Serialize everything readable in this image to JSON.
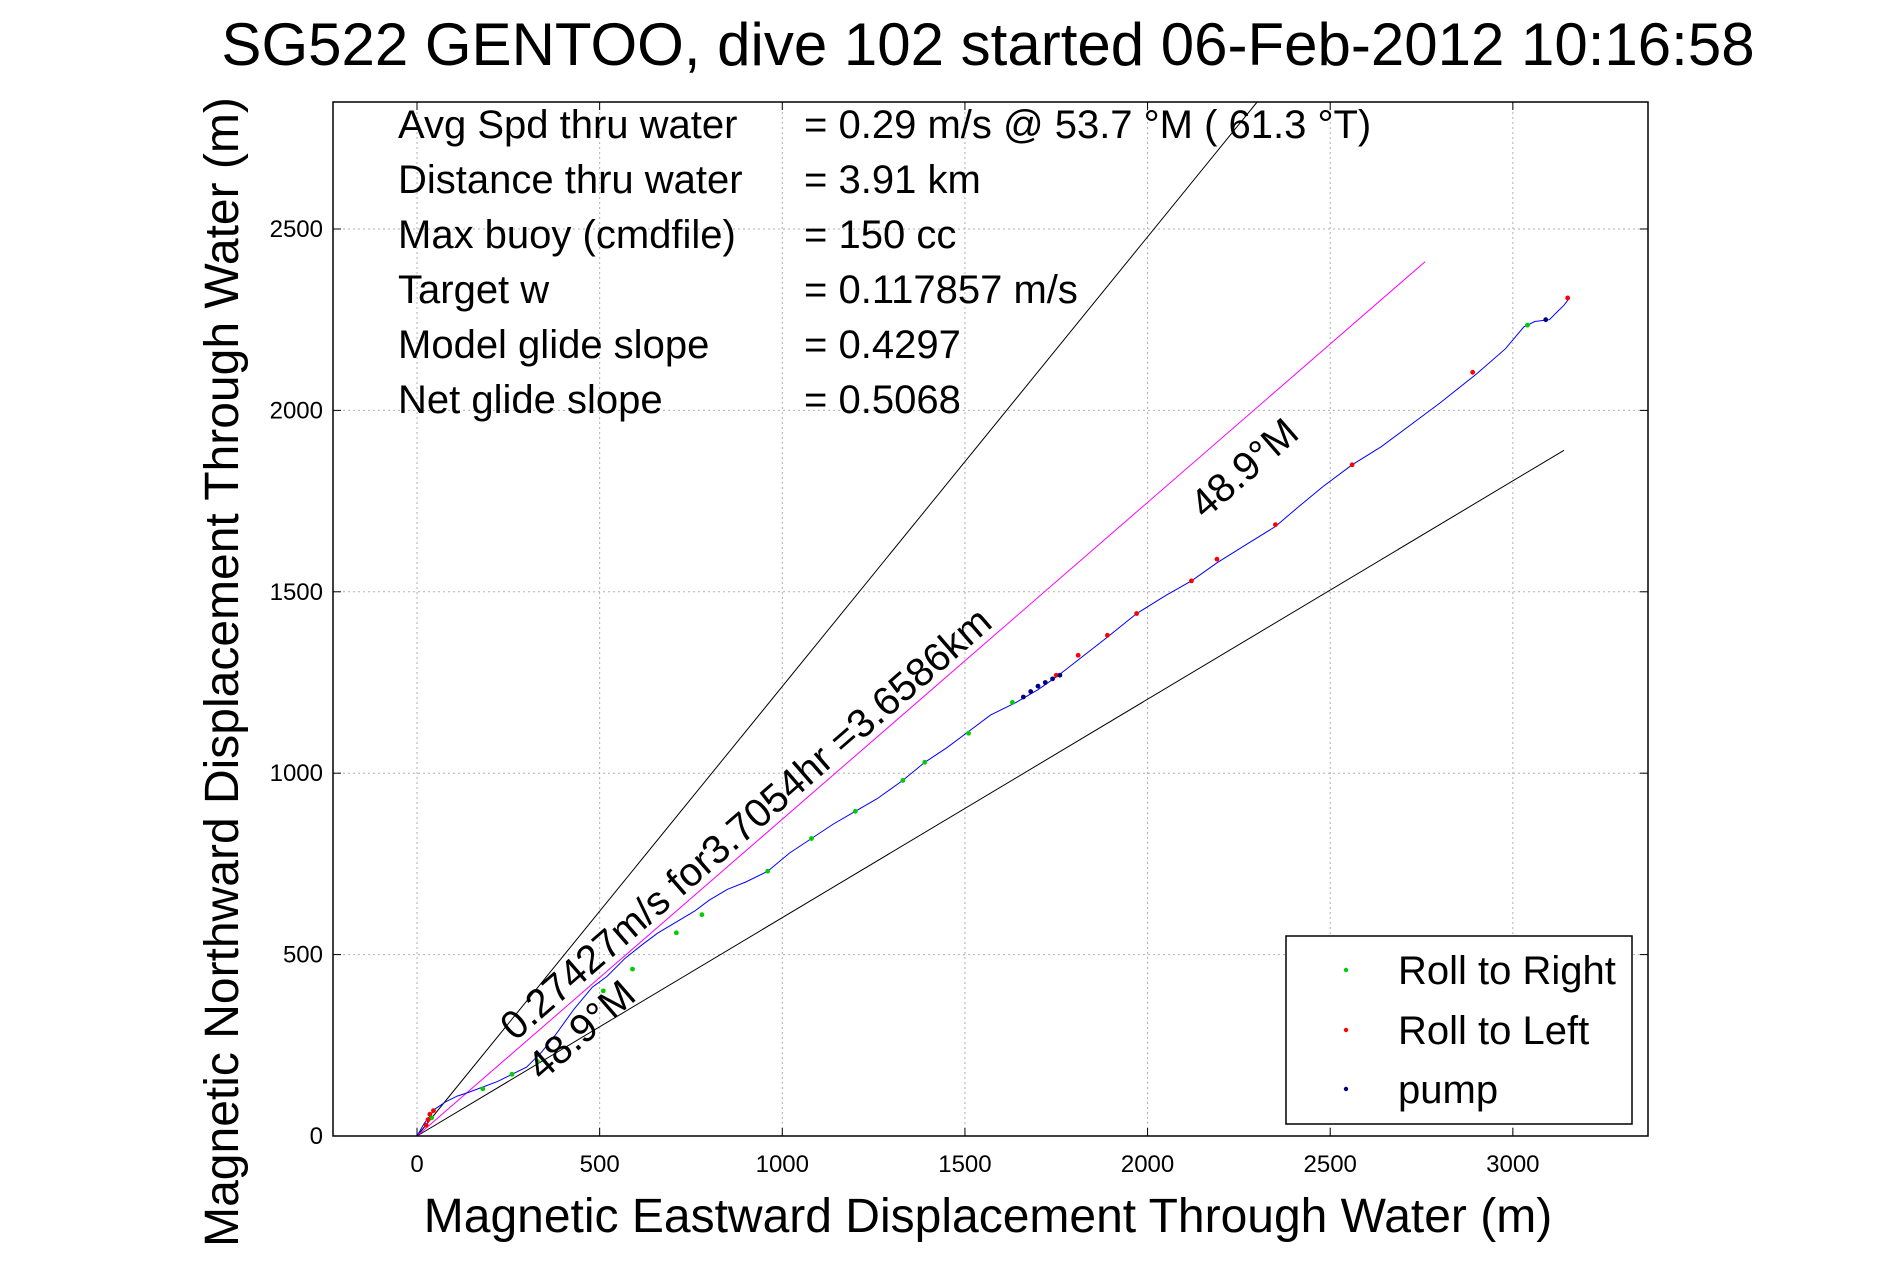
{
  "chart_data": {
    "type": "line",
    "title": "SG522 GENTOO, dive 102 started 06-Feb-2012 10:16:58",
    "xlabel": "Magnetic Eastward Displacement Through Water (m)",
    "ylabel": "Magnetic Northward Displacement Through Water (m)",
    "xlim": [
      -230,
      3370
    ],
    "ylim": [
      0,
      2850
    ],
    "xticks": [
      0,
      500,
      1000,
      1500,
      2000,
      2500,
      3000
    ],
    "yticks": [
      0,
      500,
      1000,
      1500,
      2000,
      2500
    ],
    "grid": true,
    "legend_position": "bottom-right",
    "info": [
      {
        "label": "Avg Spd thru water",
        "value": "=  0.29 m/s @  53.7 °M ( 61.3 °T)"
      },
      {
        "label": "Distance thru water",
        "value": "=  3.91 km"
      },
      {
        "label": "Max buoy (cmdfile)",
        "value": "= 150 cc"
      },
      {
        "label": "Target w",
        "value": "= 0.117857 m/s"
      },
      {
        "label": "Model glide slope",
        "value": "= 0.4297"
      },
      {
        "label": "Net glide slope",
        "value": "= 0.5068"
      }
    ],
    "annotations": {
      "speed_text": "0.27427m/s for3.7054hr =3.6586km",
      "heading_text_upper": "48.9°M",
      "heading_text_lower": "48.9°M"
    },
    "reference_lines": [
      {
        "name": "upper-bound-line",
        "color": "#000000",
        "x": [
          0,
          2300
        ],
        "y": [
          0,
          2850
        ]
      },
      {
        "name": "lower-bound-line",
        "color": "#000000",
        "x": [
          0,
          3140
        ],
        "y": [
          0,
          1890
        ]
      },
      {
        "name": "heading-line",
        "color": "#ff00ff",
        "x": [
          0,
          2760
        ],
        "y": [
          0,
          2410
        ]
      }
    ],
    "track": {
      "name": "Track",
      "color": "#0000ff",
      "x": [
        0,
        20,
        35,
        50,
        80,
        110,
        140,
        180,
        220,
        260,
        300,
        340,
        380,
        430,
        480,
        520,
        570,
        620,
        660,
        710,
        760,
        800,
        850,
        900,
        960,
        1020,
        1080,
        1140,
        1200,
        1260,
        1330,
        1390,
        1450,
        1510,
        1570,
        1640,
        1700,
        1750,
        1820,
        1890,
        1970,
        2050,
        2120,
        2190,
        2270,
        2350,
        2420,
        2480,
        2560,
        2640,
        2720,
        2800,
        2900,
        2980,
        3030,
        3060,
        3100,
        3120,
        3140,
        3155
      ],
      "y": [
        0,
        35,
        55,
        75,
        95,
        110,
        120,
        135,
        150,
        170,
        190,
        230,
        280,
        350,
        410,
        440,
        490,
        530,
        560,
        590,
        620,
        650,
        680,
        700,
        730,
        780,
        820,
        860,
        895,
        930,
        980,
        1030,
        1070,
        1115,
        1160,
        1195,
        1230,
        1265,
        1320,
        1375,
        1440,
        1490,
        1530,
        1580,
        1630,
        1680,
        1740,
        1790,
        1850,
        1900,
        1960,
        2020,
        2100,
        2170,
        2230,
        2245,
        2250,
        2270,
        2290,
        2310
      ]
    },
    "markers": {
      "roll_right": {
        "name": "Roll to Right",
        "color": "#00cc00",
        "x": [
          40,
          180,
          260,
          330,
          510,
          590,
          710,
          780,
          960,
          1080,
          1200,
          1330,
          1390,
          1510,
          1630,
          3040
        ],
        "y": [
          50,
          130,
          170,
          205,
          400,
          460,
          560,
          610,
          730,
          820,
          895,
          980,
          1030,
          1110,
          1195,
          2235
        ]
      },
      "roll_left": {
        "name": "Roll to Left",
        "color": "#ff0000",
        "x": [
          25,
          30,
          35,
          45,
          1750,
          1810,
          1890,
          1970,
          2120,
          2190,
          2350,
          2560,
          2890,
          3150
        ],
        "y": [
          30,
          45,
          60,
          70,
          1270,
          1325,
          1380,
          1440,
          1530,
          1590,
          1685,
          1850,
          2105,
          2310
        ]
      },
      "pump": {
        "name": "pump",
        "color": "#000080",
        "x": [
          1660,
          1680,
          1700,
          1720,
          1740,
          1760,
          3090
        ],
        "y": [
          1210,
          1225,
          1240,
          1250,
          1260,
          1270,
          2250
        ]
      }
    }
  }
}
